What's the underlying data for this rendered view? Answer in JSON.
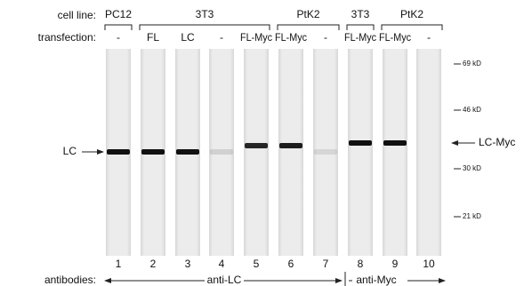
{
  "header": {
    "cell_line_label": "cell line:",
    "transfection_label": "transfection:"
  },
  "cell_lines": [
    "PC12",
    "3T3",
    "PtK2",
    "3T3",
    "PtK2"
  ],
  "lanes": [
    {
      "number": "1",
      "transfection": "-"
    },
    {
      "number": "2",
      "transfection": "FL"
    },
    {
      "number": "3",
      "transfection": "LC"
    },
    {
      "number": "4",
      "transfection": "-"
    },
    {
      "number": "5",
      "transfection": "FL-Myc"
    },
    {
      "number": "6",
      "transfection": "FL-Myc"
    },
    {
      "number": "7",
      "transfection": "-"
    },
    {
      "number": "8",
      "transfection": "FL-Myc"
    },
    {
      "number": "9",
      "transfection": "FL-Myc"
    },
    {
      "number": "10",
      "transfection": "-"
    }
  ],
  "markers": [
    "69 kD",
    "46 kD",
    "30 kD",
    "21 kD"
  ],
  "left_label": "LC",
  "right_label": "LC-Myc",
  "antibodies": {
    "label": "antibodies:",
    "groups": [
      "anti-LC",
      "anti-Myc"
    ]
  }
}
